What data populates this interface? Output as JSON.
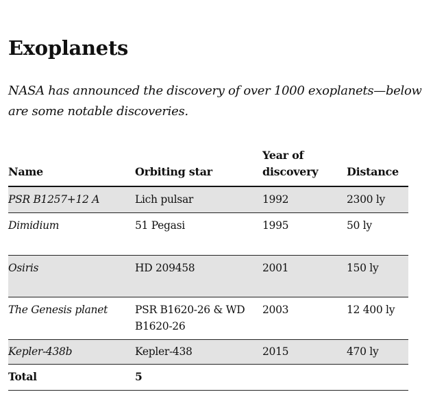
{
  "article": {
    "title": "Exoplanets",
    "intro": "NASA has announced the discovery of over 1000 exoplanets—below are some notable discoveries."
  },
  "table": {
    "headers": [
      "Name",
      "Orbiting star",
      "Year of discovery",
      "Distance"
    ],
    "rows": [
      {
        "name": "PSR B1257+12 A",
        "star": "Lich pulsar",
        "year": "1992",
        "distance": "2300 ly"
      },
      {
        "name": "Dimidium",
        "star": "51 Pegasi",
        "year": "1995",
        "distance": "50 ly"
      },
      {
        "name": "Osiris",
        "star": "HD 209458",
        "year": "2001",
        "distance": "150 ly"
      },
      {
        "name": "The Genesis planet",
        "star": "PSR B1620-26 & WD B1620-26",
        "year": "2003",
        "distance": "12 400 ly"
      },
      {
        "name": "Kepler-438b",
        "star": "Kepler-438",
        "year": "2015",
        "distance": "470 ly"
      }
    ],
    "total": {
      "label": "Total",
      "value": "5"
    }
  }
}
